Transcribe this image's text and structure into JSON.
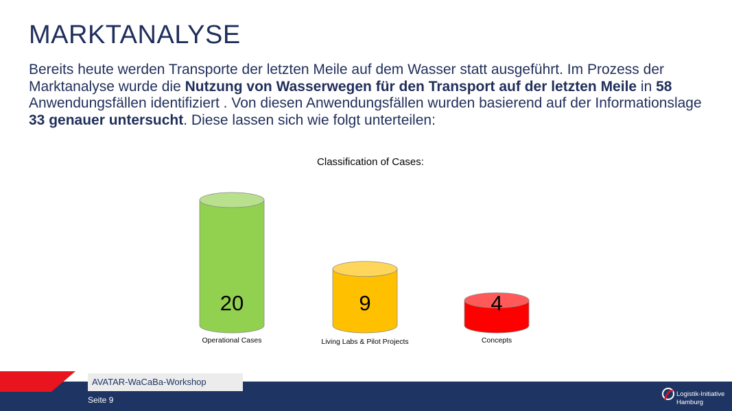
{
  "slide": {
    "title": "MARKTANALYSE",
    "paragraph": [
      {
        "text": "Bereits heute werden Transporte der letzten Meile auf dem Wasser statt ausgeführt. Im Prozess der Marktanalyse wurde die ",
        "bold": false
      },
      {
        "text": "Nutzung von Wasserwegen für den Transport auf der letzten Meile",
        "bold": true
      },
      {
        "text": " in ",
        "bold": false
      },
      {
        "text": "58",
        "bold": true
      },
      {
        "text": " Anwendungsfällen identifiziert . Von diesen Anwendungsfällen wurden basierend auf der Informationslage ",
        "bold": false
      },
      {
        "text": "33 genauer untersucht",
        "bold": true
      },
      {
        "text": ". Diese lassen sich wie folgt unterteilen:",
        "bold": false
      }
    ]
  },
  "chart_data": {
    "type": "bar",
    "style": "cylinder",
    "title": "Classification of Cases:",
    "xlabel": "",
    "ylabel": "",
    "categories": [
      "Operational Cases",
      "Living Labs & Pilot Projects",
      "Concepts"
    ],
    "values": [
      20,
      9,
      4
    ],
    "ylim": [
      0,
      20
    ],
    "colors": [
      "#92d050",
      "#ffc000",
      "#ff0000"
    ],
    "data_labels": [
      "20",
      "9",
      "4"
    ],
    "grid": false,
    "legend": "none"
  },
  "footer": {
    "workshop_label": "AVATAR-WaCaBa-Workshop",
    "page_label": "Seite 9",
    "logo_line1": "Logistik-Initiative",
    "logo_line2": "Hamburg",
    "band_color": "#1e3462",
    "accent_color": "#e8141e"
  }
}
